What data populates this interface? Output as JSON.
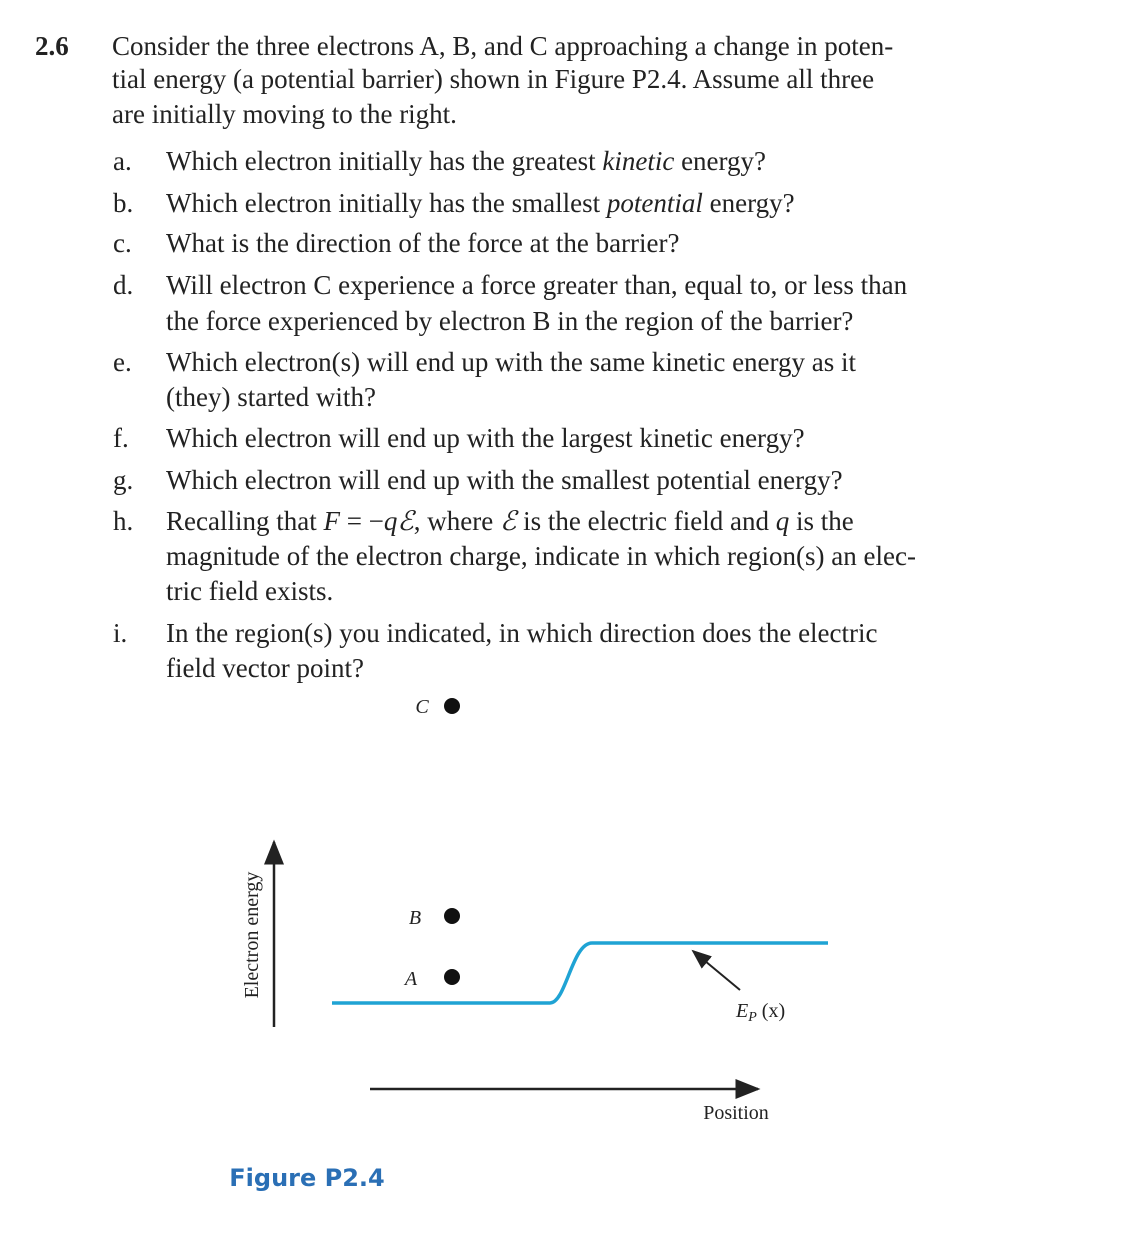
{
  "problem": {
    "number": "2.6",
    "lines": [
      [
        "Consider the three electrons A, B, and C approaching a change in poten-"
      ],
      [
        "tial energy (a potential barrier) shown in Figure P2.4. Assume all three"
      ],
      [
        "are initially moving to the right."
      ]
    ]
  },
  "parts": [
    {
      "label": "a.",
      "lines": [
        [
          "Which electron initially has the greatest ",
          "kinetic",
          " energy?"
        ]
      ]
    },
    {
      "label": "b.",
      "lines": [
        [
          "Which electron initially has the smallest ",
          "potential",
          " energy?"
        ]
      ]
    },
    {
      "label": "c.",
      "lines": [
        [
          "What is the direction of the force at the barrier?"
        ]
      ]
    },
    {
      "label": "d.",
      "lines": [
        [
          "Will electron C experience a force greater than, equal to, or less than"
        ],
        [
          "the force experienced by electron B in the region of the barrier?"
        ]
      ]
    },
    {
      "label": "e.",
      "lines": [
        [
          "Which electron(s) will end up with the same kinetic energy as it"
        ],
        [
          "(they) started with?"
        ]
      ]
    },
    {
      "label": "f.",
      "lines": [
        [
          "Which electron will end up with the largest kinetic energy?"
        ]
      ]
    },
    {
      "label": "g.",
      "lines": [
        [
          "Which electron will end up with the smallest potential energy?"
        ]
      ]
    },
    {
      "label": "h.",
      "lines": [
        [
          "Recalling that ",
          "F",
          " = −",
          "qℰ",
          ", where ",
          "ℰ",
          " is the electric field and ",
          "q",
          " is the"
        ],
        [
          "magnitude of the electron charge, indicate in which region(s) an elec-"
        ],
        [
          "tric field exists."
        ]
      ]
    },
    {
      "label": "i.",
      "lines": [
        [
          "In the region(s) you indicated, in which direction does the electric"
        ],
        [
          "field vector point?"
        ]
      ]
    }
  ],
  "figure": {
    "electrons": {
      "c": "C",
      "b": "B",
      "a": "A"
    },
    "y_axis_label": "Electron energy",
    "x_axis_label": "Position",
    "curve_label": {
      "main": "E",
      "sub": "P",
      "rest": " (x)"
    },
    "caption": "Figure P2.4"
  }
}
